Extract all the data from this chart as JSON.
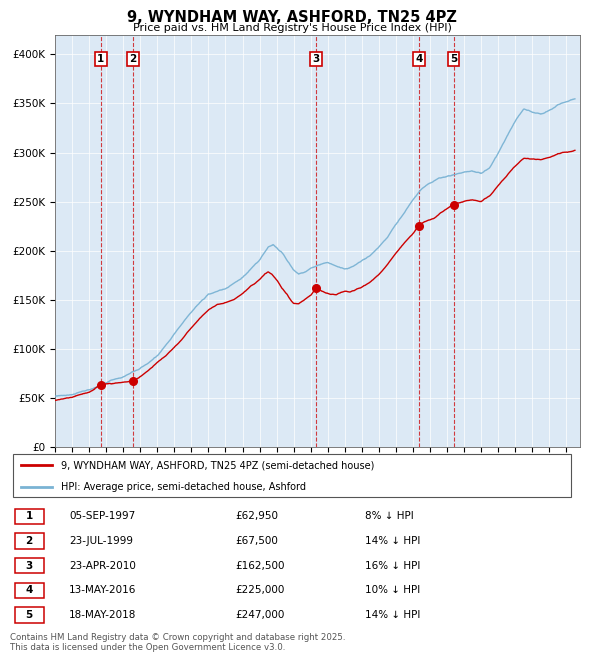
{
  "title": "9, WYNDHAM WAY, ASHFORD, TN25 4PZ",
  "subtitle": "Price paid vs. HM Land Registry's House Price Index (HPI)",
  "ylim": [
    0,
    420000
  ],
  "yticks": [
    0,
    50000,
    100000,
    150000,
    200000,
    250000,
    300000,
    350000,
    400000
  ],
  "plot_bg_color": "#dce9f5",
  "red_color": "#cc0000",
  "blue_color": "#7ab3d4",
  "transactions": [
    {
      "num": 1,
      "date_label": "05-SEP-1997",
      "date_x": 1997.68,
      "price": 62950,
      "pct": "8%"
    },
    {
      "num": 2,
      "date_label": "23-JUL-1999",
      "date_x": 1999.56,
      "price": 67500,
      "pct": "14%"
    },
    {
      "num": 3,
      "date_label": "23-APR-2010",
      "date_x": 2010.31,
      "price": 162500,
      "pct": "16%"
    },
    {
      "num": 4,
      "date_label": "13-MAY-2016",
      "date_x": 2016.36,
      "price": 225000,
      "pct": "10%"
    },
    {
      "num": 5,
      "date_label": "18-MAY-2018",
      "date_x": 2018.38,
      "price": 247000,
      "pct": "14%"
    }
  ],
  "legend_red_label": "9, WYNDHAM WAY, ASHFORD, TN25 4PZ (semi-detached house)",
  "legend_blue_label": "HPI: Average price, semi-detached house, Ashford",
  "footer": "Contains HM Land Registry data © Crown copyright and database right 2025.\nThis data is licensed under the Open Government Licence v3.0.",
  "xmin": 1995.0,
  "xmax": 2025.8,
  "hpi_keypoints": [
    [
      1995.0,
      52000
    ],
    [
      1996.0,
      55000
    ],
    [
      1997.0,
      59000
    ],
    [
      1998.0,
      66000
    ],
    [
      1999.0,
      72000
    ],
    [
      2000.0,
      82000
    ],
    [
      2001.0,
      95000
    ],
    [
      2002.0,
      118000
    ],
    [
      2003.0,
      140000
    ],
    [
      2004.0,
      158000
    ],
    [
      2005.0,
      163000
    ],
    [
      2006.0,
      175000
    ],
    [
      2007.0,
      192000
    ],
    [
      2007.5,
      205000
    ],
    [
      2007.8,
      208000
    ],
    [
      2008.3,
      200000
    ],
    [
      2008.7,
      190000
    ],
    [
      2009.0,
      182000
    ],
    [
      2009.3,
      178000
    ],
    [
      2009.6,
      180000
    ],
    [
      2010.0,
      183000
    ],
    [
      2010.5,
      186000
    ],
    [
      2011.0,
      188000
    ],
    [
      2011.5,
      185000
    ],
    [
      2012.0,
      183000
    ],
    [
      2012.5,
      186000
    ],
    [
      2013.0,
      191000
    ],
    [
      2013.5,
      196000
    ],
    [
      2014.0,
      205000
    ],
    [
      2014.5,
      215000
    ],
    [
      2015.0,
      228000
    ],
    [
      2015.5,
      240000
    ],
    [
      2016.0,
      252000
    ],
    [
      2016.5,
      262000
    ],
    [
      2017.0,
      268000
    ],
    [
      2017.5,
      272000
    ],
    [
      2018.0,
      274000
    ],
    [
      2018.5,
      276000
    ],
    [
      2019.0,
      278000
    ],
    [
      2019.5,
      280000
    ],
    [
      2020.0,
      278000
    ],
    [
      2020.5,
      284000
    ],
    [
      2021.0,
      298000
    ],
    [
      2021.5,
      314000
    ],
    [
      2022.0,
      330000
    ],
    [
      2022.5,
      342000
    ],
    [
      2023.0,
      340000
    ],
    [
      2023.5,
      338000
    ],
    [
      2024.0,
      342000
    ],
    [
      2024.5,
      348000
    ],
    [
      2025.0,
      352000
    ],
    [
      2025.5,
      356000
    ]
  ],
  "red_keypoints": [
    [
      1995.0,
      48000
    ],
    [
      1996.0,
      51000
    ],
    [
      1997.0,
      56000
    ],
    [
      1997.68,
      62950
    ],
    [
      1998.0,
      64000
    ],
    [
      1998.5,
      65000
    ],
    [
      1999.0,
      66000
    ],
    [
      1999.56,
      67500
    ],
    [
      2000.0,
      72000
    ],
    [
      2000.5,
      79000
    ],
    [
      2001.0,
      87000
    ],
    [
      2001.5,
      94000
    ],
    [
      2002.0,
      103000
    ],
    [
      2002.5,
      112000
    ],
    [
      2003.0,
      122000
    ],
    [
      2003.5,
      132000
    ],
    [
      2004.0,
      140000
    ],
    [
      2004.5,
      146000
    ],
    [
      2005.0,
      148000
    ],
    [
      2005.5,
      152000
    ],
    [
      2006.0,
      158000
    ],
    [
      2006.5,
      166000
    ],
    [
      2007.0,
      172000
    ],
    [
      2007.3,
      178000
    ],
    [
      2007.5,
      180000
    ],
    [
      2007.7,
      178000
    ],
    [
      2008.0,
      172000
    ],
    [
      2008.3,
      164000
    ],
    [
      2008.6,
      158000
    ],
    [
      2008.9,
      150000
    ],
    [
      2009.0,
      148000
    ],
    [
      2009.3,
      147000
    ],
    [
      2009.6,
      150000
    ],
    [
      2010.0,
      155000
    ],
    [
      2010.31,
      162500
    ],
    [
      2010.6,
      160000
    ],
    [
      2010.9,
      158000
    ],
    [
      2011.2,
      156000
    ],
    [
      2011.5,
      155000
    ],
    [
      2011.8,
      157000
    ],
    [
      2012.0,
      158000
    ],
    [
      2012.3,
      157000
    ],
    [
      2012.6,
      159000
    ],
    [
      2013.0,
      162000
    ],
    [
      2013.5,
      167000
    ],
    [
      2014.0,
      175000
    ],
    [
      2014.5,
      184000
    ],
    [
      2015.0,
      196000
    ],
    [
      2015.5,
      207000
    ],
    [
      2016.0,
      216000
    ],
    [
      2016.36,
      225000
    ],
    [
      2016.7,
      228000
    ],
    [
      2017.0,
      230000
    ],
    [
      2017.3,
      232000
    ],
    [
      2017.6,
      237000
    ],
    [
      2018.0,
      242000
    ],
    [
      2018.38,
      247000
    ],
    [
      2018.7,
      248000
    ],
    [
      2019.0,
      250000
    ],
    [
      2019.5,
      252000
    ],
    [
      2020.0,
      250000
    ],
    [
      2020.5,
      255000
    ],
    [
      2021.0,
      265000
    ],
    [
      2021.5,
      275000
    ],
    [
      2022.0,
      285000
    ],
    [
      2022.5,
      292000
    ],
    [
      2023.0,
      291000
    ],
    [
      2023.5,
      290000
    ],
    [
      2024.0,
      292000
    ],
    [
      2024.5,
      296000
    ],
    [
      2025.0,
      298000
    ],
    [
      2025.5,
      300000
    ]
  ]
}
